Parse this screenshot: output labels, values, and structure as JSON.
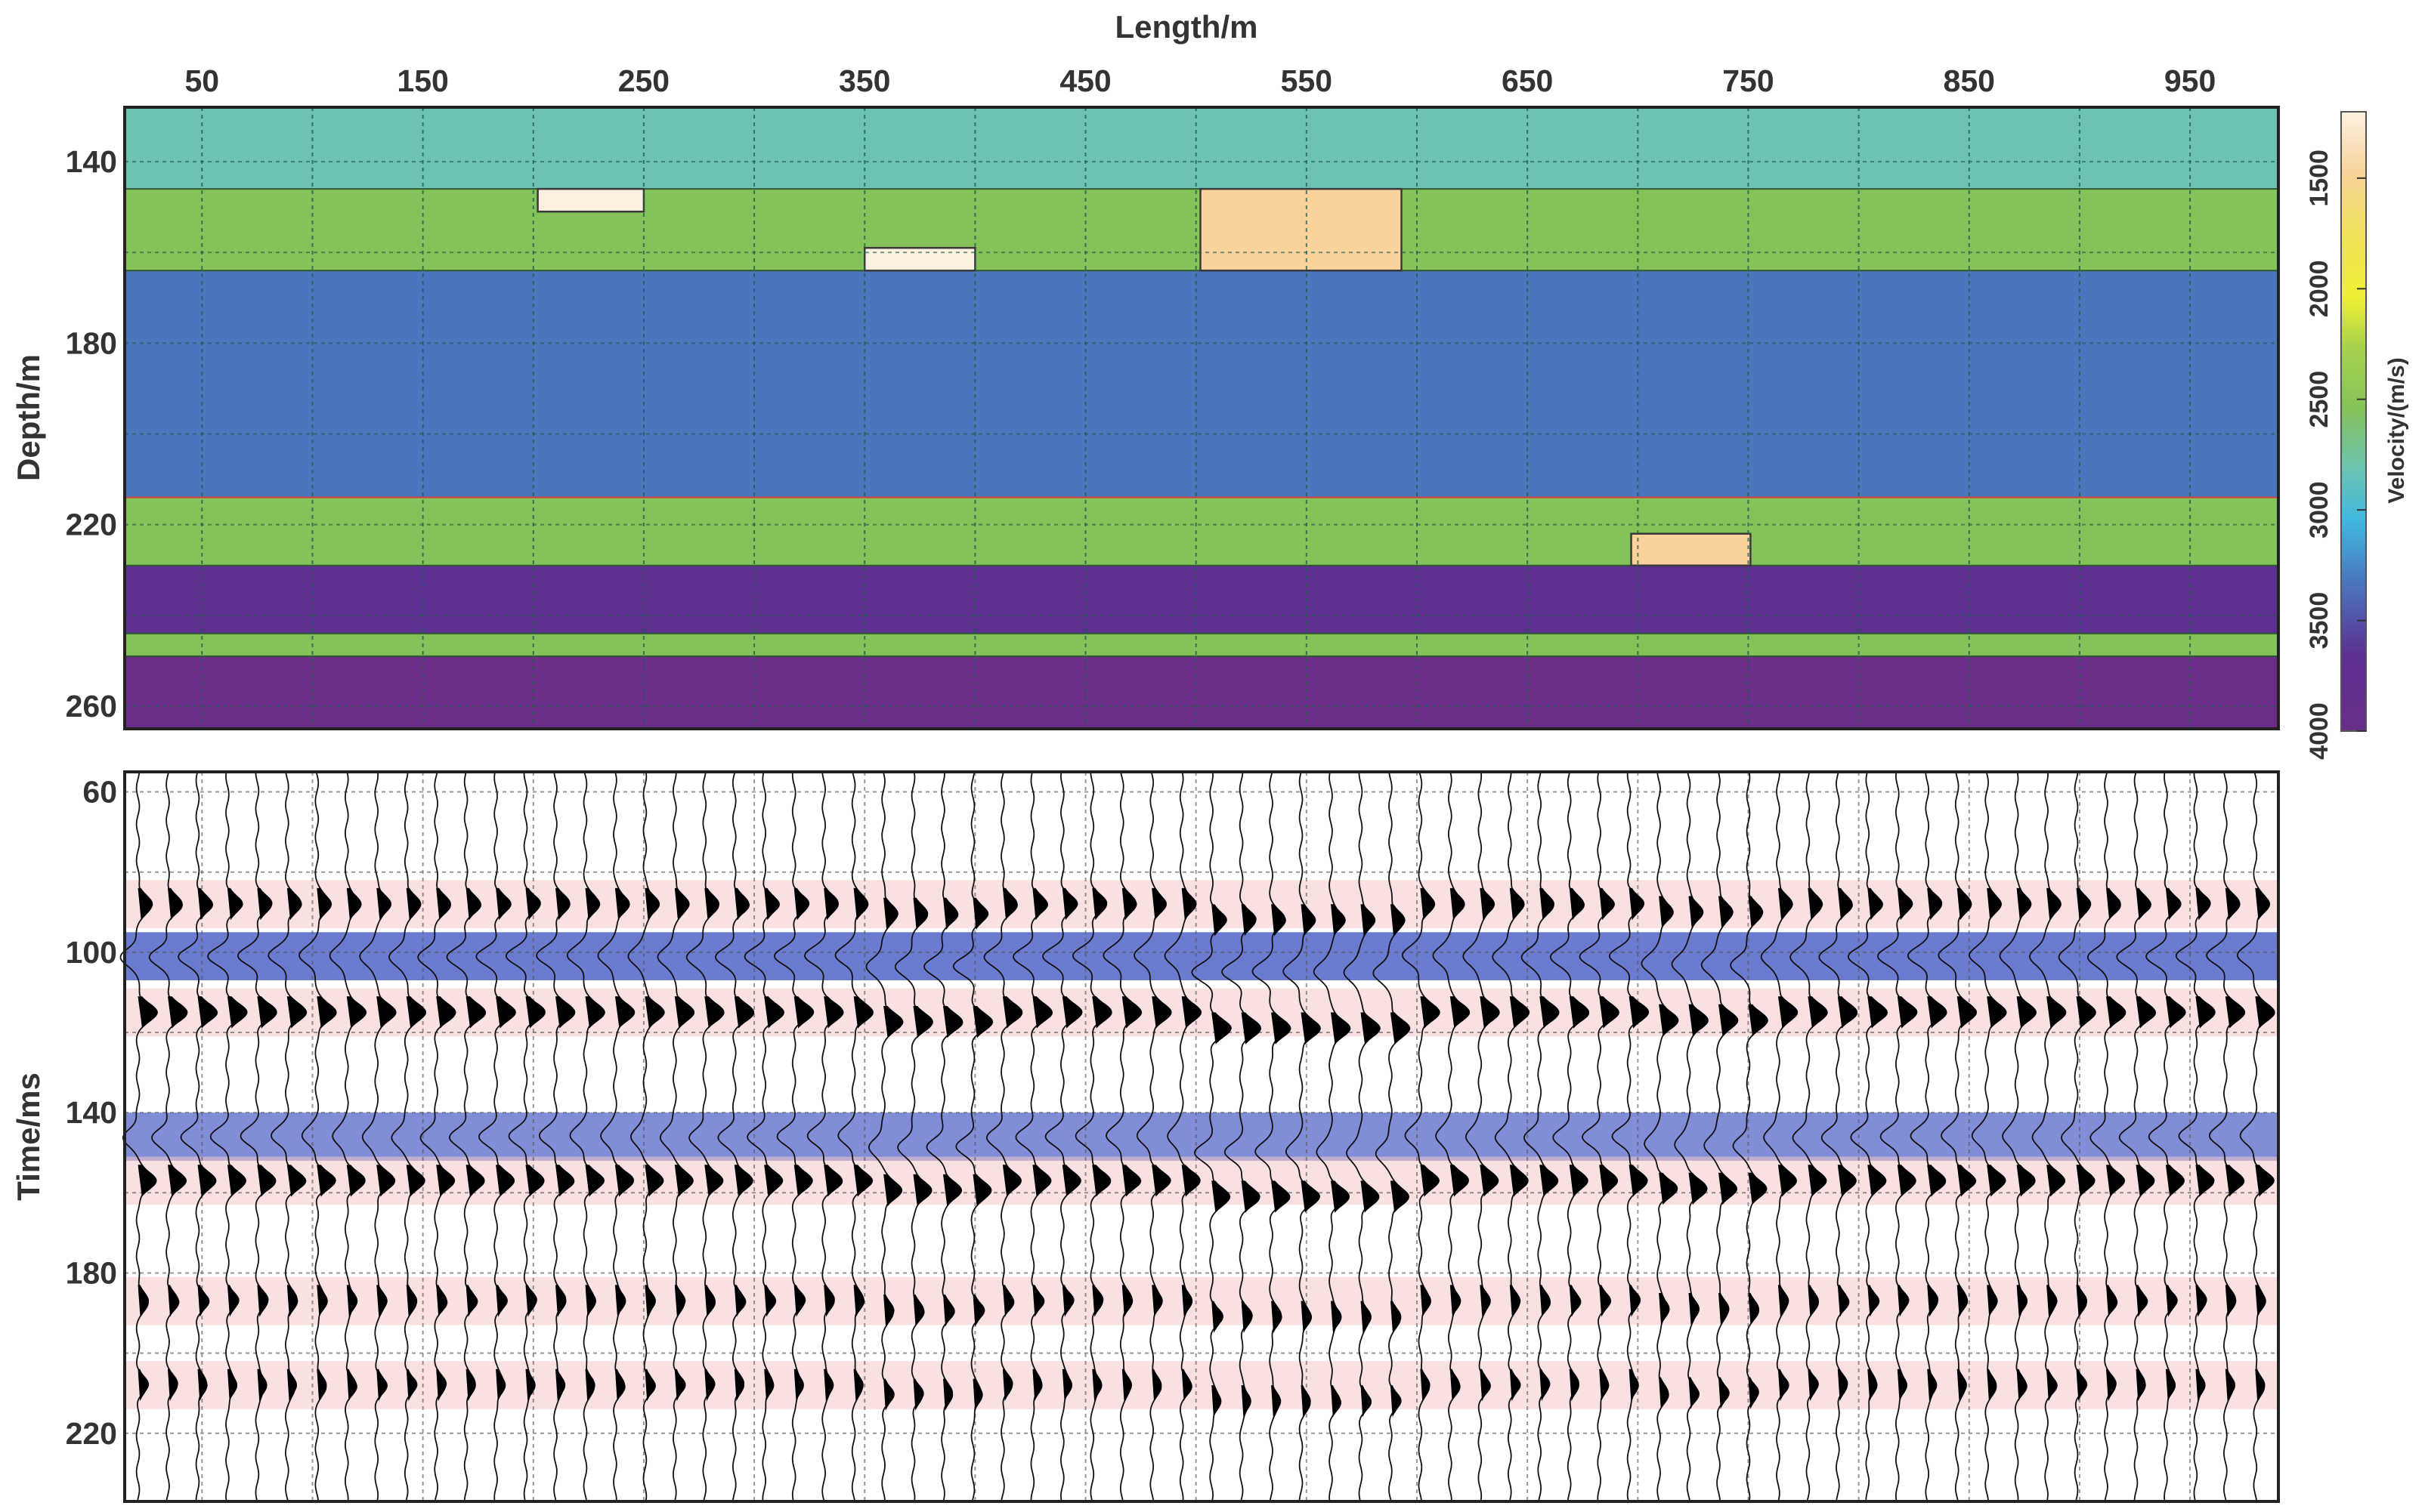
{
  "chart_data": [
    {
      "type": "heatmap",
      "name": "velocity-model",
      "xlabel": "Length/m",
      "ylabel": "Depth/m",
      "xlim": [
        15,
        990
      ],
      "ylim": [
        128,
        265
      ],
      "x_ticks": [
        "50",
        "150",
        "250",
        "350",
        "450",
        "550",
        "650",
        "750",
        "850",
        "950"
      ],
      "y_ticks": [
        "140",
        "180",
        "220",
        "260"
      ],
      "grid": true,
      "layers": [
        {
          "top": 128,
          "bottom": 146,
          "velocity": 2900,
          "color": "#6cc3b4"
        },
        {
          "top": 146,
          "bottom": 164,
          "velocity": 2450,
          "color": "#84c25a"
        },
        {
          "top": 164,
          "bottom": 214,
          "velocity": 3400,
          "color": "#4a76bd"
        },
        {
          "top": 214,
          "bottom": 229,
          "velocity": 2450,
          "color": "#84c25a"
        },
        {
          "top": 229,
          "bottom": 244,
          "velocity": 3900,
          "color": "#5c2f90"
        },
        {
          "top": 244,
          "bottom": 249,
          "velocity": 2450,
          "color": "#84c25a"
        },
        {
          "top": 249,
          "bottom": 265,
          "velocity": 3800,
          "color": "#6a2d88"
        }
      ],
      "anomalies": [
        {
          "x0": 202,
          "x1": 250,
          "top": 146,
          "bottom": 151,
          "velocity": 1200,
          "color": "#fcf1e0"
        },
        {
          "x0": 350,
          "x1": 400,
          "top": 159,
          "bottom": 164,
          "velocity": 1200,
          "color": "#fcf1e0"
        },
        {
          "x0": 502,
          "x1": 593,
          "top": 146,
          "bottom": 164,
          "velocity": 1400,
          "color": "#f9d39b"
        },
        {
          "x0": 697,
          "x1": 751,
          "top": 222,
          "bottom": 229,
          "velocity": 1400,
          "color": "#f9d39b"
        }
      ],
      "colorbar": {
        "label": "Velocity/(m/s)",
        "ticks": [
          "1500",
          "2000",
          "2500",
          "3000",
          "3500",
          "4000"
        ],
        "range": [
          1200,
          4000
        ]
      }
    },
    {
      "type": "seismic",
      "name": "synthetic-record",
      "xlabel": "Length/m",
      "ylabel": "Time/ms",
      "xlim": [
        15,
        990
      ],
      "ylim": [
        55,
        237
      ],
      "y_ticks": [
        "60",
        "100",
        "140",
        "180",
        "220"
      ],
      "grid": true,
      "trace_spacing": 13.5,
      "reflections": [
        {
          "time": 88,
          "polarity": 1,
          "amp": 0.75
        },
        {
          "time": 101,
          "polarity": -1,
          "amp": 1.0
        },
        {
          "time": 115,
          "polarity": 1,
          "amp": 1.0
        },
        {
          "time": 146,
          "polarity": -1,
          "amp": 0.85
        },
        {
          "time": 157,
          "polarity": 1,
          "amp": 0.95
        },
        {
          "time": 187,
          "polarity": 1,
          "amp": 0.55
        },
        {
          "time": 208,
          "polarity": 1,
          "amp": 0.5
        }
      ]
    }
  ]
}
